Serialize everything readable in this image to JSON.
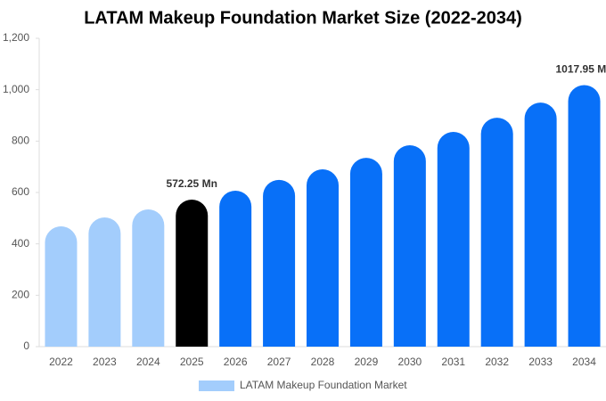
{
  "chart_data": {
    "type": "bar",
    "title": "LATAM Makeup Foundation Market Size (2022-2034)",
    "categories": [
      "2022",
      "2023",
      "2024",
      "2025",
      "2026",
      "2027",
      "2028",
      "2029",
      "2030",
      "2031",
      "2032",
      "2033",
      "2034"
    ],
    "series": [
      {
        "name": "LATAM Makeup Foundation Market",
        "color": "#a3cdfc",
        "colors": [
          "#a3cdfc",
          "#a3cdfc",
          "#a3cdfc",
          "#000000",
          "#0870f8",
          "#0870f8",
          "#0870f8",
          "#0870f8",
          "#0870f8",
          "#0870f8",
          "#0870f8",
          "#0870f8",
          "#0870f8"
        ],
        "values": [
          468,
          503,
          534,
          572.25,
          607,
          649,
          690,
          735,
          784,
          836,
          891,
          950,
          1017.95
        ],
        "value_labels": [
          null,
          null,
          null,
          "572.25 Mn",
          null,
          null,
          null,
          null,
          null,
          null,
          null,
          null,
          "1017.95 Mn"
        ]
      }
    ],
    "ylim": [
      0,
      1200
    ],
    "yticks": [
      0,
      200,
      400,
      600,
      800,
      {
        "value": 1000,
        "label": "1,000"
      },
      {
        "value": 1200,
        "label": "1,200"
      }
    ],
    "grid": false
  }
}
